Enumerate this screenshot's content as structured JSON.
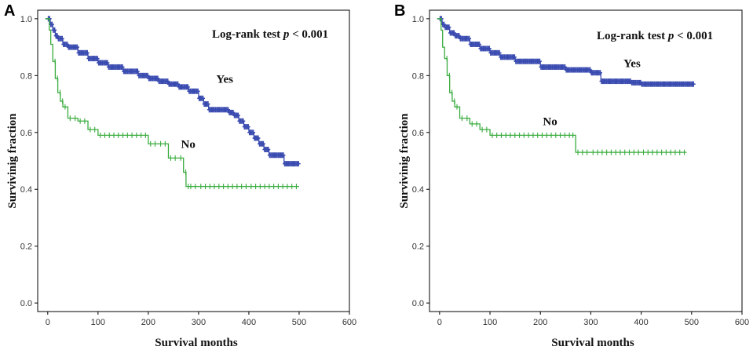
{
  "chart_data": [
    {
      "type": "line",
      "panel": "A",
      "title": "",
      "xlabel": "Survival months",
      "ylabel": "Survivinig fraction",
      "xlim": [
        -20,
        600
      ],
      "ylim": [
        -0.03,
        1.03
      ],
      "xticks": [
        "0",
        "100",
        "200",
        "300",
        "400",
        "500",
        "600"
      ],
      "yticks": [
        "0.0",
        "0.2",
        "0.4",
        "0.6",
        "0.8",
        "1.0"
      ],
      "annotation": {
        "prefix": "Log-rank test ",
        "p": "p",
        "suffix": " < 0.001"
      },
      "series": [
        {
          "name": "Yes",
          "color": "#3a4bb0",
          "label_at": [
            335,
            0.775
          ],
          "x": [
            0,
            5,
            10,
            15,
            20,
            30,
            40,
            60,
            80,
            100,
            120,
            150,
            180,
            200,
            220,
            240,
            260,
            280,
            300,
            310,
            320,
            340,
            360,
            370,
            380,
            390,
            400,
            410,
            420,
            430,
            440,
            450,
            460,
            470,
            480,
            490,
            500
          ],
          "y": [
            1.0,
            0.98,
            0.96,
            0.94,
            0.93,
            0.91,
            0.9,
            0.88,
            0.86,
            0.845,
            0.83,
            0.815,
            0.8,
            0.79,
            0.78,
            0.77,
            0.76,
            0.745,
            0.72,
            0.7,
            0.68,
            0.68,
            0.67,
            0.66,
            0.64,
            0.62,
            0.6,
            0.58,
            0.56,
            0.54,
            0.52,
            0.52,
            0.52,
            0.49,
            0.49,
            0.49,
            0.49
          ]
        },
        {
          "name": "No",
          "color": "#3aac3f",
          "label_at": [
            265,
            0.545
          ],
          "x": [
            0,
            3,
            6,
            10,
            15,
            20,
            25,
            30,
            40,
            50,
            60,
            80,
            100,
            200,
            220,
            240,
            260,
            270,
            275,
            280,
            300,
            400,
            500
          ],
          "y": [
            1.0,
            0.96,
            0.91,
            0.85,
            0.79,
            0.74,
            0.71,
            0.69,
            0.65,
            0.65,
            0.64,
            0.61,
            0.59,
            0.56,
            0.56,
            0.51,
            0.51,
            0.46,
            0.41,
            0.41,
            0.41,
            0.41,
            0.41
          ]
        }
      ]
    },
    {
      "type": "line",
      "panel": "B",
      "title": "",
      "xlabel": "Survival months",
      "ylabel": "Survivinig fraction",
      "xlim": [
        -20,
        600
      ],
      "ylim": [
        -0.03,
        1.03
      ],
      "xticks": [
        "0",
        "100",
        "200",
        "300",
        "400",
        "500",
        "600"
      ],
      "yticks": [
        "0.0",
        "0.2",
        "0.4",
        "0.6",
        "0.8",
        "1.0"
      ],
      "annotation": {
        "prefix": "Log-rank test ",
        "p": "p",
        "suffix": " < 0.001"
      },
      "series": [
        {
          "name": "Yes",
          "color": "#3a4bb0",
          "label_at": [
            365,
            0.83
          ],
          "x": [
            0,
            5,
            10,
            20,
            30,
            40,
            60,
            80,
            100,
            120,
            150,
            200,
            250,
            300,
            320,
            350,
            380,
            400,
            420,
            450,
            480,
            500
          ],
          "y": [
            1.0,
            0.98,
            0.97,
            0.95,
            0.94,
            0.93,
            0.91,
            0.895,
            0.88,
            0.865,
            0.85,
            0.83,
            0.82,
            0.81,
            0.78,
            0.78,
            0.775,
            0.77,
            0.77,
            0.77,
            0.77,
            0.77
          ],
          "end_x": 505
        },
        {
          "name": "No",
          "color": "#3aac3f",
          "label_at": [
            205,
            0.625
          ],
          "x": [
            0,
            3,
            6,
            10,
            15,
            20,
            25,
            30,
            40,
            50,
            60,
            80,
            100,
            260,
            270,
            300,
            400,
            490
          ],
          "y": [
            1.0,
            0.96,
            0.9,
            0.86,
            0.8,
            0.74,
            0.71,
            0.69,
            0.65,
            0.65,
            0.63,
            0.61,
            0.59,
            0.59,
            0.53,
            0.53,
            0.53,
            0.53
          ]
        }
      ]
    }
  ]
}
